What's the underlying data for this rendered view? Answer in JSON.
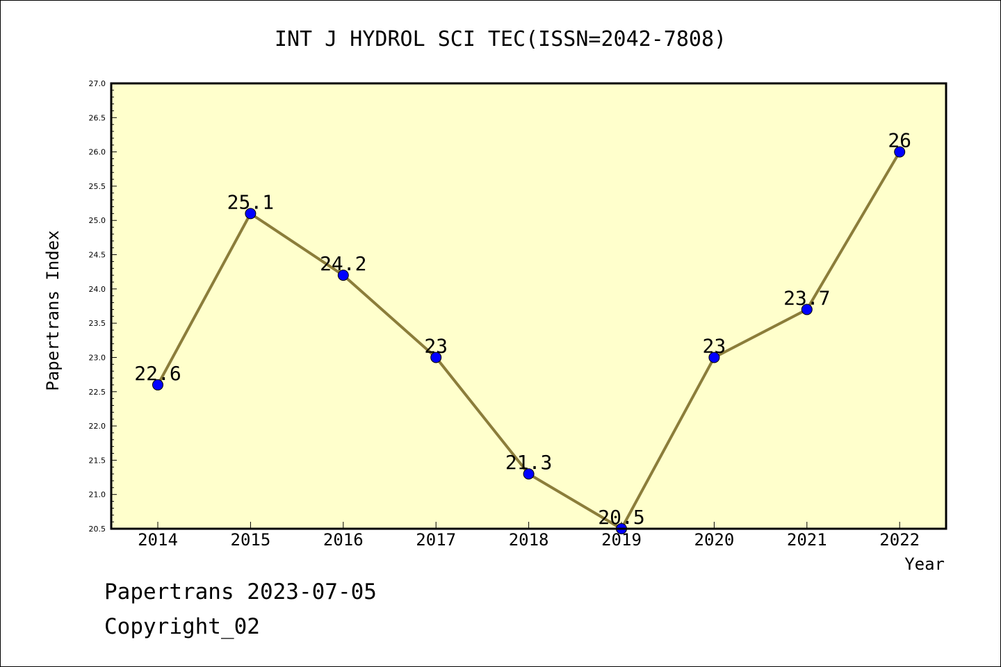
{
  "chart_data": {
    "type": "line",
    "title": "INT J HYDROL SCI TEC(ISSN=2042-7808)",
    "xlabel": "Year",
    "ylabel": "Papertrans Index",
    "categories": [
      "2014",
      "2015",
      "2016",
      "2017",
      "2018",
      "2019",
      "2020",
      "2021",
      "2022"
    ],
    "values": [
      22.6,
      25.1,
      24.2,
      23,
      21.3,
      20.5,
      23,
      23.7,
      26
    ],
    "data_labels": [
      "22.6",
      "25.1",
      "24.2",
      "23",
      "21.3",
      "20.5",
      "23",
      "23.7",
      "26"
    ],
    "ylim": [
      20.5,
      27.0
    ],
    "yticks": [
      "20.5",
      "21.0",
      "21.5",
      "22.0",
      "22.5",
      "23.0",
      "23.5",
      "24.0",
      "24.5",
      "25.0",
      "25.5",
      "26.0",
      "26.5",
      "27.0"
    ],
    "grid": false,
    "legend": "none",
    "colors": {
      "plot_background": "#ffffcc",
      "line": "#8b7d3a",
      "marker": "#0000ff",
      "axes": "#000000"
    }
  },
  "footer": {
    "line1": "Papertrans 2023-07-05",
    "line2": "Copyright_02"
  }
}
